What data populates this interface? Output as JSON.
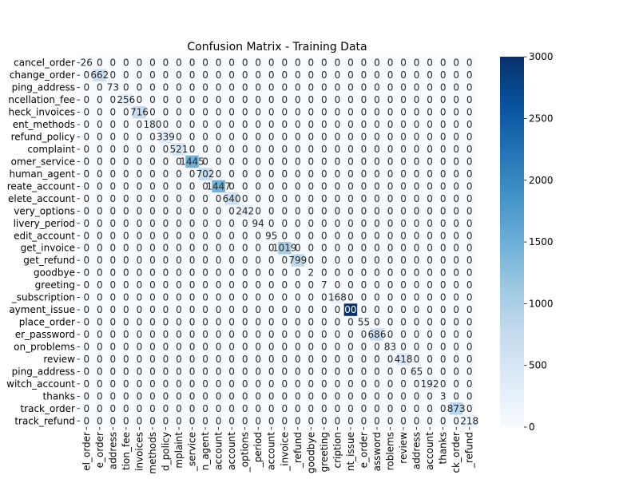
{
  "chart_data": {
    "type": "heatmap",
    "title": "Confusion Matrix - Training Data",
    "xlabel": "",
    "ylabel": "",
    "y_labels": [
      "cancel_order",
      "change_order",
      "change_shipping_address",
      "check_cancellation_fee",
      "check_invoices",
      "check_payment_methods",
      "check_refund_policy",
      "complaint",
      "contact_customer_service",
      "contact_human_agent",
      "create_account",
      "delete_account",
      "delivery_options",
      "delivery_period",
      "edit_account",
      "get_invoice",
      "get_refund",
      "goodbye",
      "greeting",
      "newsletter_subscription",
      "payment_issue",
      "place_order",
      "recover_password",
      "registration_problems",
      "review",
      "set_up_shipping_address",
      "switch_account",
      "thanks",
      "track_order",
      "track_refund"
    ],
    "y_labels_visible": [
      "cancel_order",
      "change_order",
      "ping_address",
      "ncellation_fee",
      "heck_invoices",
      "ent_methods",
      "refund_policy",
      "complaint",
      "omer_service",
      "human_agent",
      "reate_account",
      "elete_account",
      "very_options",
      "livery_period",
      "edit_account",
      "get_invoice",
      "get_refund",
      "goodbye",
      "greeting",
      "_subscription",
      "ayment_issue",
      "place_order",
      "er_password",
      "on_problems",
      "review",
      "ping_address",
      "witch_account",
      "thanks",
      "track_order",
      "track_refund"
    ],
    "x_labels_visible": [
      "el_order",
      "e_order",
      "address",
      "tion_fee",
      "invoices",
      "methods",
      "d_policy",
      "mplaint",
      "_service",
      "n_agent",
      "account",
      "account",
      "_options",
      "_period",
      "account",
      "_invoice",
      "_refund",
      "goodbye",
      "greeting",
      "cription",
      "nt_issue",
      "e_order",
      "assword",
      "roblems",
      "review",
      "address",
      "account",
      "thanks",
      "ck_order",
      "_refund"
    ],
    "diagonal": [
      26,
      662,
      73,
      256,
      716,
      180,
      339,
      521,
      1445,
      702,
      1447,
      640,
      242,
      94,
      95,
      1019,
      799,
      2,
      7,
      168,
      3001,
      55,
      686,
      83,
      418,
      65,
      192,
      3,
      873,
      218
    ],
    "diagonal_labels": [
      "26",
      "662",
      "73",
      "256",
      "716",
      "180",
      "339",
      "521",
      "1445",
      "702",
      "1447",
      "640",
      "242",
      "94",
      "95",
      "1019",
      "799",
      "2",
      "7",
      "168",
      "3001",
      "55",
      "686",
      "83",
      "418",
      "65",
      "192",
      "3",
      "873",
      "218"
    ],
    "off_diagonal_value": 0,
    "off_diagonal_label": "0",
    "colorbar": {
      "min": 0,
      "max": 3001,
      "ticks": [
        0,
        500,
        1000,
        1500,
        2000,
        2500,
        3000
      ],
      "tick_labels": [
        "0",
        "500",
        "1000",
        "1500",
        "2000",
        "2500",
        "3000"
      ],
      "colormap": "Blues",
      "low_color": "#f7fbff",
      "high_color": "#08306b"
    },
    "grid": false
  }
}
